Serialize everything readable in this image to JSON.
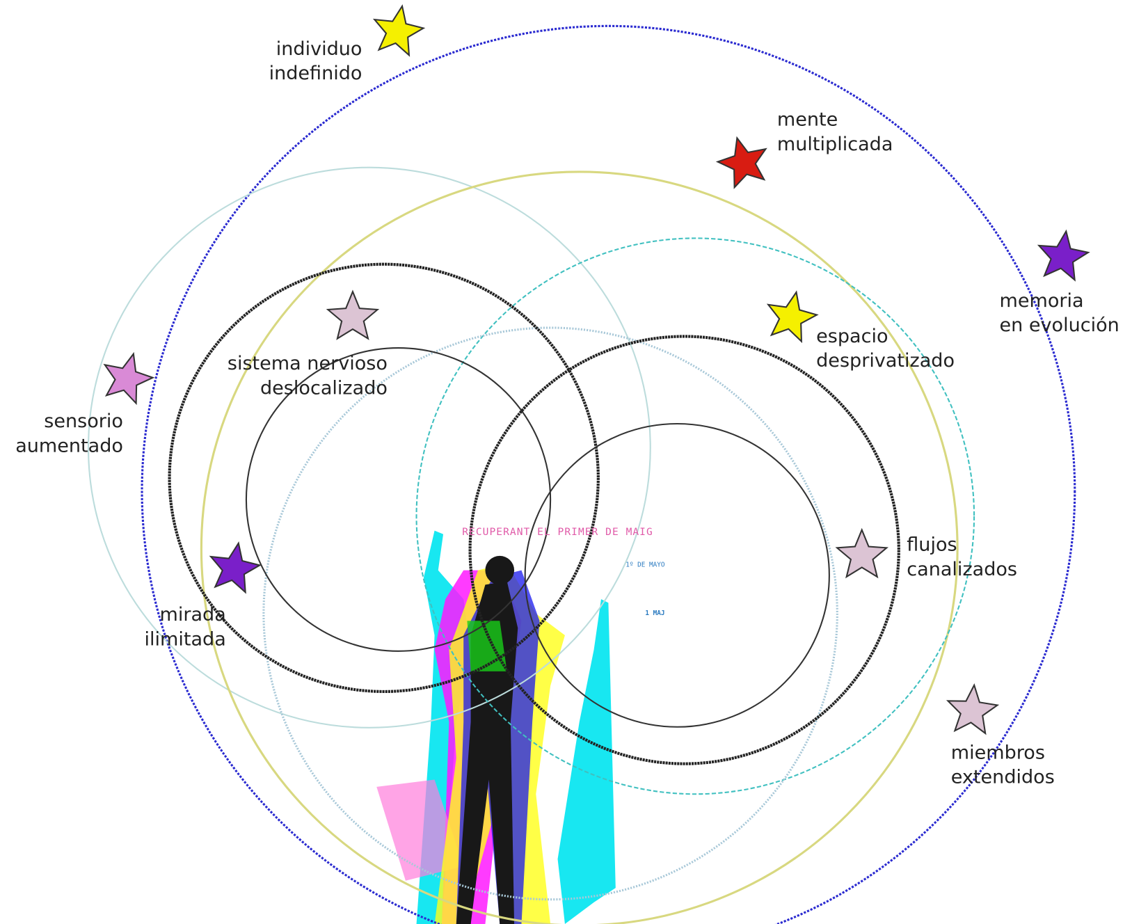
{
  "nodes": [
    {
      "label": [
        "individuo",
        "indefinido"
      ],
      "color": "#f5f000"
    },
    {
      "label": [
        "mente",
        "multiplicada"
      ],
      "color": "#d81c12"
    },
    {
      "label": [
        "memoria",
        "en evolución"
      ],
      "color": "#7a1fc9"
    },
    {
      "label": [
        "espacio",
        "desprivatizado"
      ],
      "color": "#f5f000"
    },
    {
      "label": [
        "sistema nervioso",
        "deslocalizado"
      ],
      "color": "#dcc4d4"
    },
    {
      "label": [
        "sensorio",
        "aumentado"
      ],
      "color": "#d98ad6"
    },
    {
      "label": [
        "mirada",
        "ilimitada"
      ],
      "color": "#7a1fc9"
    },
    {
      "label": [
        "flujos",
        "canalizados"
      ],
      "color": "#dcc4d4"
    },
    {
      "label": [
        "miembros",
        "extendidos"
      ],
      "color": "#dcc4d4"
    }
  ],
  "poster": {
    "title": "RECUPERANT EL PRIMER DE MAIG",
    "lines": [
      "1º DE MAYO",
      "1 MAJ"
    ]
  }
}
